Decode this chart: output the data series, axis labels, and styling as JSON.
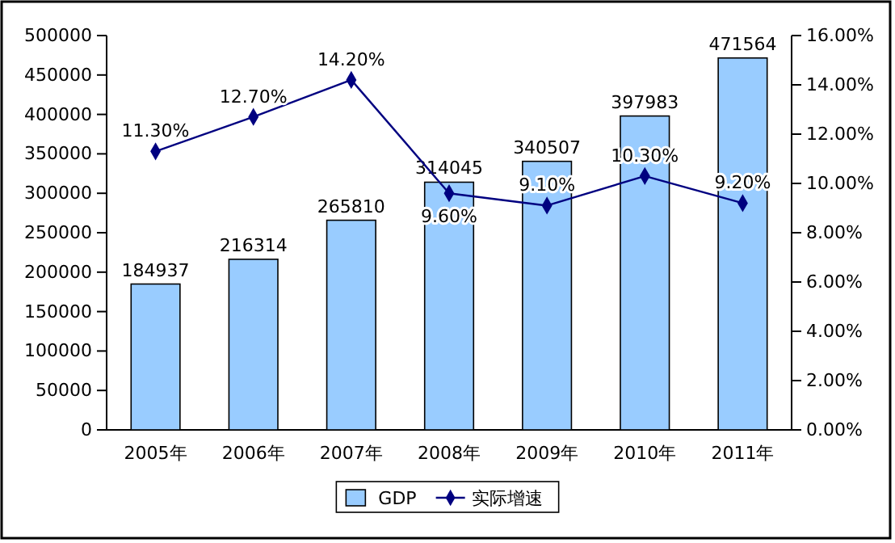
{
  "chart_data": {
    "type": "bar",
    "categories": [
      "2005年",
      "2006年",
      "2007年",
      "2008年",
      "2009年",
      "2010年",
      "2011年"
    ],
    "series": [
      {
        "name": "GDP",
        "color": "#99ccff",
        "values": [
          184937,
          216314,
          265810,
          314045,
          340507,
          397983,
          471564
        ]
      },
      {
        "name": "实际增速",
        "type": "line",
        "axis": "y2",
        "color": "#000080",
        "marker": "diamond",
        "values": [
          11.3,
          12.7,
          14.2,
          9.6,
          9.1,
          10.3,
          9.2
        ],
        "value_labels": [
          "11.30%",
          "12.70%",
          "14.20%",
          "9.60%",
          "9.10%",
          "10.30%",
          "9.20%"
        ]
      }
    ],
    "ylim": [
      0,
      500000
    ],
    "yticks": [
      0,
      50000,
      100000,
      150000,
      200000,
      250000,
      300000,
      350000,
      400000,
      450000,
      500000
    ],
    "y2lim": [
      0,
      16
    ],
    "y2ticks": [
      {
        "value": 0,
        "label": "0.00%"
      },
      {
        "value": 2,
        "label": "2.00%"
      },
      {
        "value": 4,
        "label": "4.00%"
      },
      {
        "value": 6,
        "label": "6.00%"
      },
      {
        "value": 8,
        "label": "8.00%"
      },
      {
        "value": 10,
        "label": "10.00%"
      },
      {
        "value": 12,
        "label": "12.00%"
      },
      {
        "value": 14,
        "label": "14.00%"
      },
      {
        "value": 16,
        "label": "16.00%"
      }
    ],
    "data_labels": true,
    "legend": "bottom",
    "grid": false
  }
}
